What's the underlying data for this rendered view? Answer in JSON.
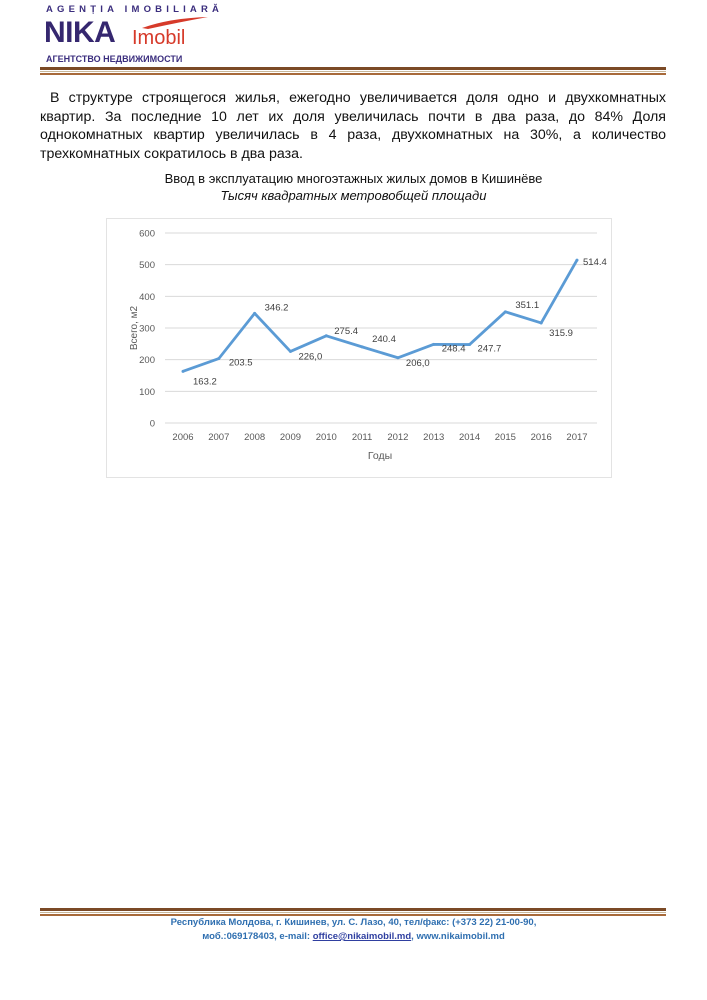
{
  "header": {
    "logo_top": "AGENȚIA IMOBILIARĂ",
    "logo_nika": "NIKA",
    "logo_imobil": "Imobil",
    "logo_bottom": "АГЕНТСТВО НЕДВИЖИМОСТИ"
  },
  "body": {
    "paragraph": "В структуре строящегося жилья, ежегодно увеличивается доля одно и двухкомнатных квартир. За последние 10 лет их доля увеличилась почти в два раза, до 84% Доля однокомнатных квартир увеличилась в 4 раза, двухкомнатных на 30%, а количество трехкомнатных сократилось в два раза."
  },
  "chart_data": {
    "type": "line",
    "title": "Ввод в эксплуатацию многоэтажных жилых домов в Кишинёве",
    "subtitle": "Тысяч квадратных метровобщей площади",
    "xlabel": "Годы",
    "ylabel": "Всего, м2",
    "ylim": [
      0,
      600
    ],
    "yticks": [
      "0",
      "100",
      "200",
      "300",
      "400",
      "500",
      "600"
    ],
    "categories": [
      "2006",
      "2007",
      "2008",
      "2009",
      "2010",
      "2011",
      "2012",
      "2013",
      "2014",
      "2015",
      "2016",
      "2017"
    ],
    "values": [
      163.2,
      203.5,
      346.2,
      226.0,
      275.4,
      240.4,
      206.0,
      248.4,
      247.7,
      351.1,
      315.9,
      514.4
    ],
    "data_labels": [
      "163.2",
      "203.5",
      "346.2",
      "226,0",
      "275.4",
      "240.4",
      "206,0",
      "248.4",
      "247.7",
      "351.1",
      "315.9",
      "514.4"
    ],
    "grid": true,
    "series_color": "#5b9bd5"
  },
  "footer": {
    "line1": "Республика Молдова, г. Кишинев, ул. С. Лазо, 40, тел/факс: (+373 22) 21-00-90,",
    "line2_prefix": "моб.:069178403, e-mail: ",
    "email": "office@nikaimobil.md",
    "line2_sep": ", ",
    "website": "www.nikaimobil.md"
  }
}
